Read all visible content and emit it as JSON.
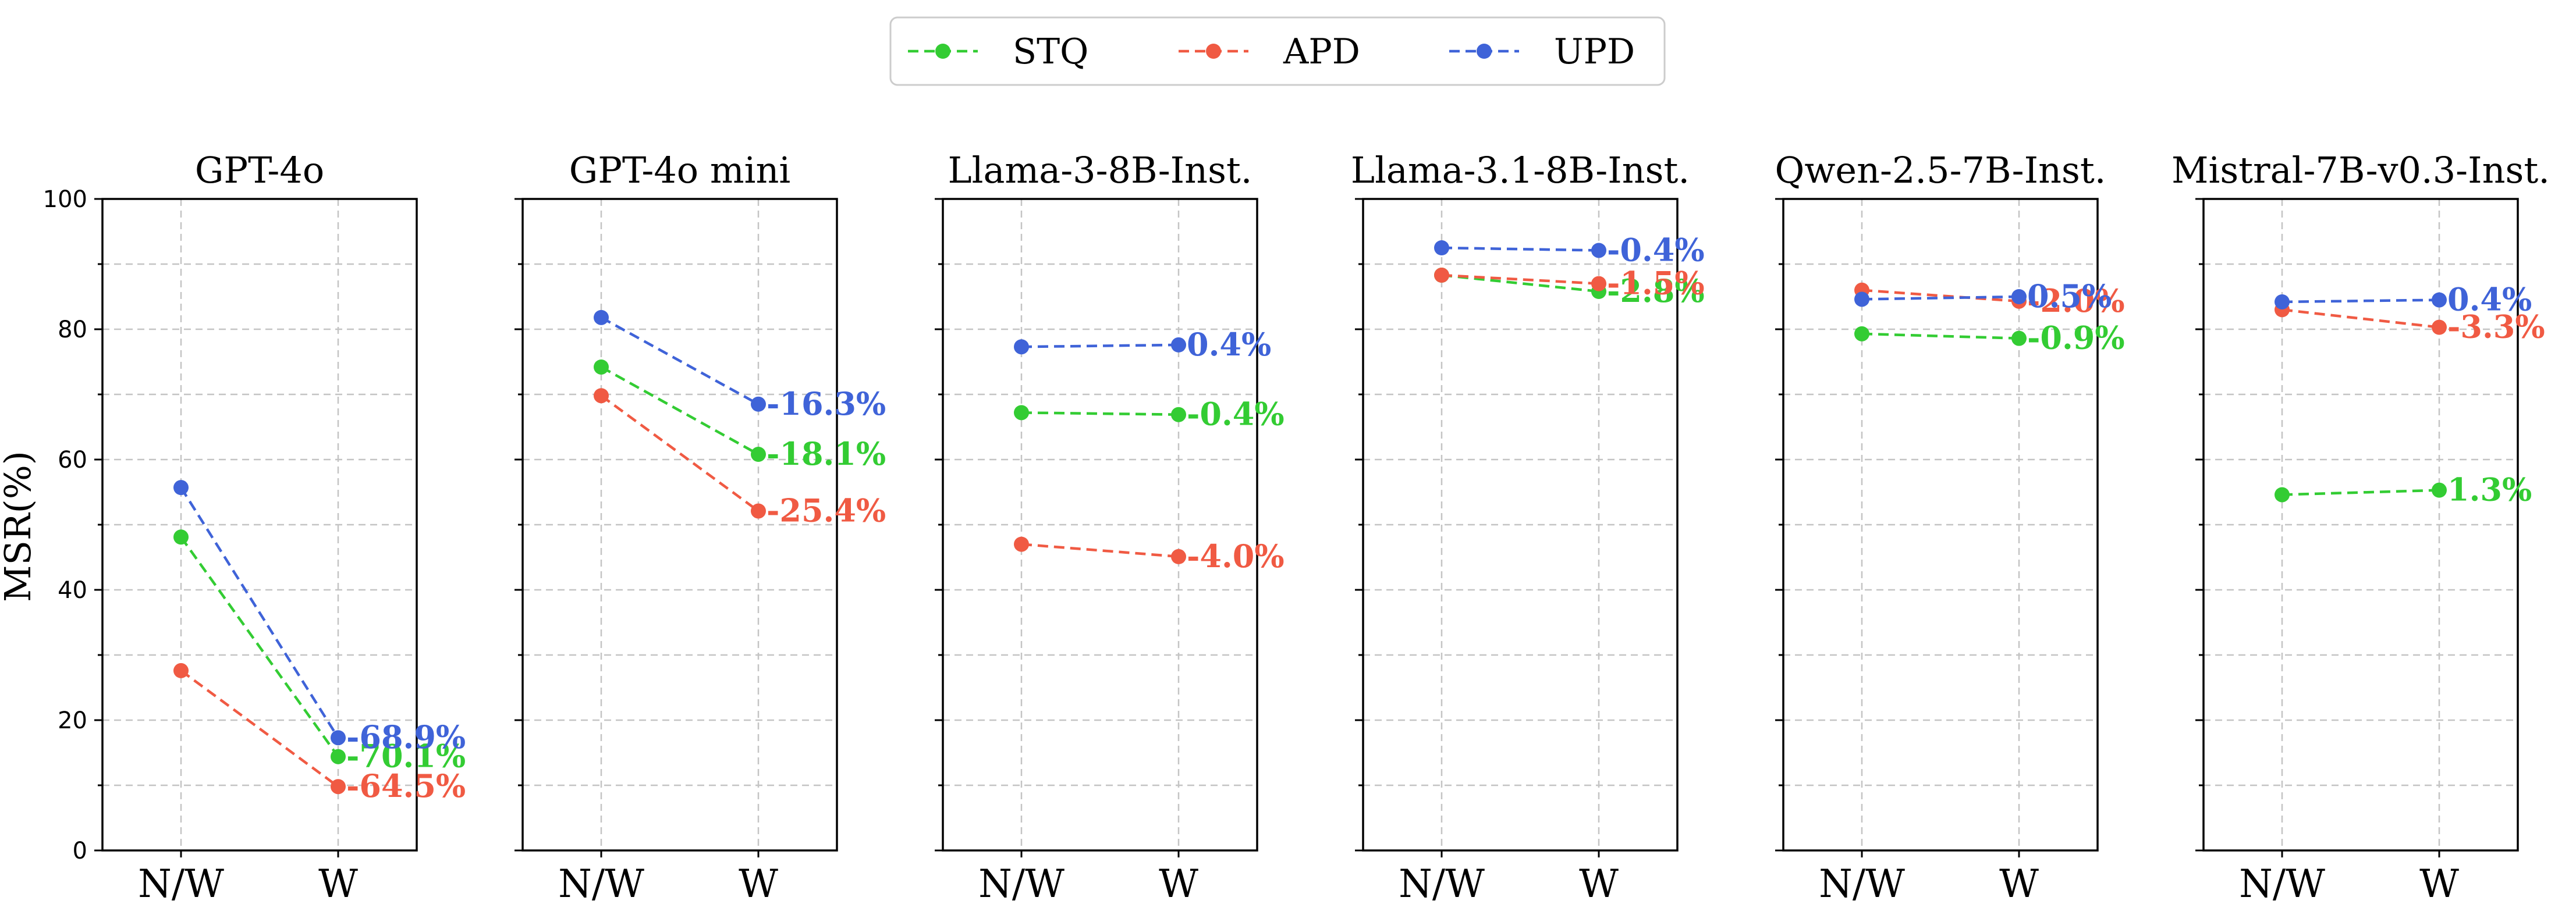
{
  "chart_data": {
    "type": "line",
    "ylabel": "MSR(%)",
    "ylim": [
      0,
      100
    ],
    "yticks": [
      0,
      20,
      40,
      60,
      80,
      100
    ],
    "categories": [
      "N/W",
      "W"
    ],
    "grid": true,
    "legend": {
      "placement": "top-center",
      "entries": [
        {
          "name": "STQ",
          "color": "#33cc33"
        },
        {
          "name": "APD",
          "color": "#f05a43"
        },
        {
          "name": "UPD",
          "color": "#3f63d8"
        }
      ]
    },
    "panels": [
      {
        "title": "GPT-4o",
        "series": [
          {
            "name": "STQ",
            "values": [
              48.1,
              14.4
            ],
            "label": "-70.1%"
          },
          {
            "name": "APD",
            "values": [
              27.6,
              9.8
            ],
            "label": "-64.5%"
          },
          {
            "name": "UPD",
            "values": [
              55.7,
              17.3
            ],
            "label": "-68.9%"
          }
        ]
      },
      {
        "title": "GPT-4o mini",
        "series": [
          {
            "name": "STQ",
            "values": [
              74.2,
              60.8
            ],
            "label": "-18.1%"
          },
          {
            "name": "APD",
            "values": [
              69.8,
              52.1
            ],
            "label": "-25.4%"
          },
          {
            "name": "UPD",
            "values": [
              81.8,
              68.5
            ],
            "label": "-16.3%"
          }
        ]
      },
      {
        "title": "Llama-3-8B-Inst.",
        "series": [
          {
            "name": "STQ",
            "values": [
              67.2,
              66.9
            ],
            "label": "-0.4%"
          },
          {
            "name": "APD",
            "values": [
              47.0,
              45.1
            ],
            "label": "-4.0%"
          },
          {
            "name": "UPD",
            "values": [
              77.3,
              77.6
            ],
            "label": "0.4%"
          }
        ]
      },
      {
        "title": "Llama-3.1-8B-Inst.",
        "series": [
          {
            "name": "STQ",
            "values": [
              88.3,
              85.8
            ],
            "label": "-2.8%"
          },
          {
            "name": "APD",
            "values": [
              88.3,
              87.0
            ],
            "label": "-1.5%"
          },
          {
            "name": "UPD",
            "values": [
              92.5,
              92.1
            ],
            "label": "-0.4%"
          }
        ]
      },
      {
        "title": "Qwen-2.5-7B-Inst.",
        "series": [
          {
            "name": "STQ",
            "values": [
              79.3,
              78.6
            ],
            "label": "-0.9%"
          },
          {
            "name": "APD",
            "values": [
              86.0,
              84.3
            ],
            "label": "-2.0%"
          },
          {
            "name": "UPD",
            "values": [
              84.6,
              85.0
            ],
            "label": "0.5%"
          }
        ]
      },
      {
        "title": "Mistral-7B-v0.3-Inst.",
        "series": [
          {
            "name": "STQ",
            "values": [
              54.6,
              55.3
            ],
            "label": "1.3%"
          },
          {
            "name": "APD",
            "values": [
              83.0,
              80.3
            ],
            "label": "-3.3%"
          },
          {
            "name": "UPD",
            "values": [
              84.2,
              84.5
            ],
            "label": "0.4%"
          }
        ]
      }
    ]
  }
}
